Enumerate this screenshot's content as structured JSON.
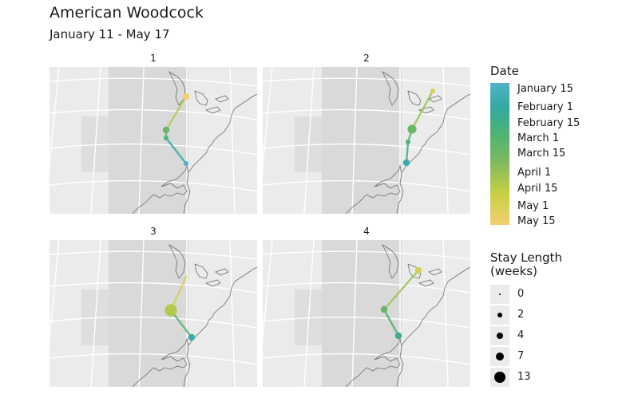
{
  "title": "American Woodcock",
  "subtitle": "January 11 - May 17",
  "panels": [
    {
      "label": "1",
      "track": [
        {
          "point": "stop-1",
          "date": "January 15",
          "stay": 2
        },
        {
          "point": "stop-2",
          "date": "March 1",
          "stay": 2
        },
        {
          "point": "stop-3",
          "date": "March 15",
          "stay": 4
        },
        {
          "point": "stop-4",
          "date": "May 15",
          "stay": 4
        }
      ]
    },
    {
      "label": "2",
      "track": [
        {
          "point": "stop-1",
          "date": "February 1",
          "stay": 4
        },
        {
          "point": "stop-2",
          "date": "March 1",
          "stay": 2
        },
        {
          "point": "stop-3",
          "date": "March 15",
          "stay": 7
        },
        {
          "point": "stop-4",
          "date": "May 1",
          "stay": 2
        }
      ]
    },
    {
      "label": "3",
      "track": [
        {
          "point": "stop-1",
          "date": "February 1",
          "stay": 4
        },
        {
          "point": "stop-2",
          "date": "April 15",
          "stay": 13
        },
        {
          "point": "stop-3",
          "date": "May 15",
          "stay": 0
        }
      ]
    },
    {
      "label": "4",
      "track": [
        {
          "point": "stop-1",
          "date": "February 15",
          "stay": 4
        },
        {
          "point": "stop-2",
          "date": "March 15",
          "stay": 4
        },
        {
          "point": "stop-3",
          "date": "May 1",
          "stay": 4
        }
      ]
    }
  ],
  "legend": {
    "date_title": "Date",
    "date_labels": [
      "January 15",
      "February 1",
      "February 15",
      "March 1",
      "March 15",
      "April 1",
      "April 15",
      "May 1",
      "May 15"
    ],
    "size_title_line1": "Stay Length",
    "size_title_line2": "(weeks)",
    "size_labels": [
      "0",
      "2",
      "4",
      "7",
      "13"
    ]
  },
  "colors": {
    "map_background": "#ebebeb",
    "land": "#d9d9d9",
    "coastline": "#6e6e6e",
    "graticule": "#ffffff",
    "date_scale": [
      "#4fb3c8",
      "#33a9a0",
      "#53b46f",
      "#7cb860",
      "#c8d044",
      "#f2cf72"
    ]
  }
}
